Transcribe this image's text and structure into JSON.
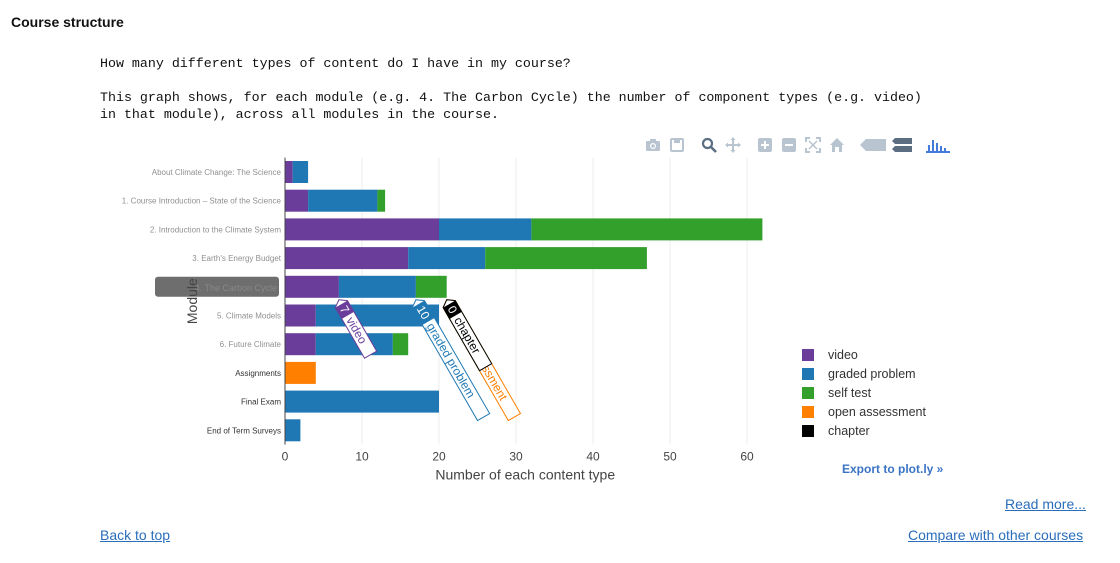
{
  "page": {
    "section_title": "Course structure",
    "question": "How many different types of content do I have in my course?",
    "description_line1": "This graph shows, for each module (e.g. 4. The Carbon Cycle) the number of component types (e.g. video)",
    "description_line2": "in that module), across all modules in the course.",
    "read_more": "Read more...",
    "back_to_top": "Back to top",
    "compare": "Compare with other courses",
    "export_plotly": "Export to plot.ly »"
  },
  "modebar": [
    "camera-icon",
    "save-icon",
    "zoom-icon",
    "pan-icon",
    "zoom-in-icon",
    "zoom-out-icon",
    "autoscale-icon",
    "reset-axes-icon",
    "hover-closest-icon",
    "hover-compare-icon",
    "plotly-logo-icon"
  ],
  "chart_data": {
    "type": "bar",
    "orientation": "horizontal",
    "stacked": true,
    "categories": [
      "About Climate Change: The Science",
      "1. Course Introduction – State of the Science",
      "2. Introduction to the Climate System",
      "3. Earth's Energy Budget",
      "4. The Carbon Cycle",
      "5. Climate Models",
      "6. Future Climate",
      "Assignments",
      "Final Exam",
      "End of Term Surveys"
    ],
    "series": [
      {
        "name": "video",
        "color": "#6a3d9a",
        "values": [
          1,
          3,
          20,
          16,
          7,
          4,
          4,
          0,
          0,
          0
        ]
      },
      {
        "name": "graded problem",
        "color": "#1f78b4",
        "values": [
          2,
          9,
          12,
          10,
          10,
          16,
          10,
          0,
          20,
          2
        ]
      },
      {
        "name": "self test",
        "color": "#33a02c",
        "values": [
          0,
          1,
          30,
          21,
          4,
          0,
          2,
          0,
          0,
          0
        ]
      },
      {
        "name": "open assessment",
        "color": "#ff7f00",
        "values": [
          0,
          0,
          0,
          0,
          0,
          0,
          0,
          4,
          0,
          0
        ]
      },
      {
        "name": "chapter",
        "color": "#000000",
        "values": [
          0,
          0,
          0,
          0,
          0,
          0,
          0,
          0,
          0,
          0
        ]
      }
    ],
    "xlabel": "Number of each content type",
    "ylabel": "Module",
    "xlim": [
      0,
      65
    ],
    "xticks": [
      0,
      10,
      20,
      30,
      40,
      50,
      60
    ],
    "legend": "right",
    "hover_category": "4. The Carbon Cycle",
    "hover_labels": [
      {
        "value": "7",
        "name": "video"
      },
      {
        "value": "10",
        "name": "graded problem"
      },
      {
        "value": "4",
        "name": "self test"
      },
      {
        "value": "0",
        "name": "open assessment"
      },
      {
        "value": "0",
        "name": "chapter"
      }
    ]
  }
}
